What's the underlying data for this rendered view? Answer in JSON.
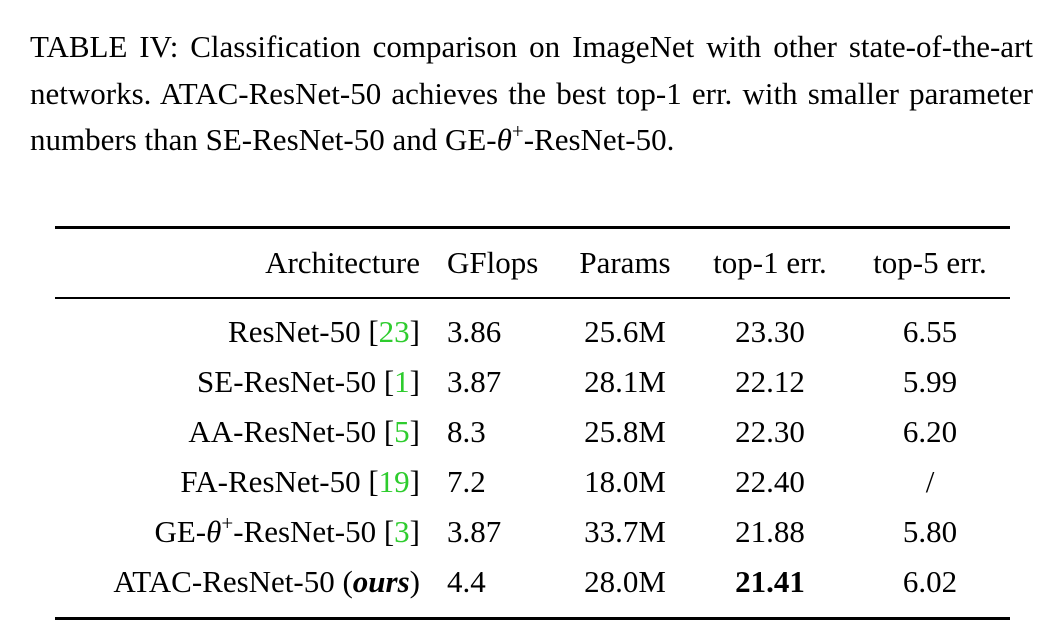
{
  "caption": [
    {
      "text": "TABLE IV: Classification comparison on ImageNet with other state-of-the-art networks. ATAC-ResNet-50 achieves the best top-1 err. with smaller parameter numbers than SE-ResNet-50 and GE-"
    },
    {
      "text": "θ",
      "style": "italic"
    },
    {
      "text": "+",
      "style": "sup"
    },
    {
      "text": "-ResNet-50."
    }
  ],
  "table": {
    "header": [
      "Architecture",
      "GFlops",
      "Params",
      "top-1 err.",
      "top-5 err."
    ],
    "rows": [
      [
        [
          {
            "text": "ResNet-50 ["
          },
          {
            "text": "23",
            "style": "cite"
          },
          {
            "text": "]"
          }
        ],
        [
          {
            "text": "3.86"
          }
        ],
        [
          {
            "text": "25.6M"
          }
        ],
        [
          {
            "text": "23.30"
          }
        ],
        [
          {
            "text": "6.55"
          }
        ]
      ],
      [
        [
          {
            "text": "SE-ResNet-50 ["
          },
          {
            "text": "1",
            "style": "cite"
          },
          {
            "text": "]"
          }
        ],
        [
          {
            "text": "3.87"
          }
        ],
        [
          {
            "text": "28.1M"
          }
        ],
        [
          {
            "text": "22.12"
          }
        ],
        [
          {
            "text": "5.99"
          }
        ]
      ],
      [
        [
          {
            "text": "AA-ResNet-50 ["
          },
          {
            "text": "5",
            "style": "cite"
          },
          {
            "text": "]"
          }
        ],
        [
          {
            "text": "8.3"
          }
        ],
        [
          {
            "text": "25.8M"
          }
        ],
        [
          {
            "text": "22.30"
          }
        ],
        [
          {
            "text": "6.20"
          }
        ]
      ],
      [
        [
          {
            "text": "FA-ResNet-50 ["
          },
          {
            "text": "19",
            "style": "cite"
          },
          {
            "text": "]"
          }
        ],
        [
          {
            "text": "7.2"
          }
        ],
        [
          {
            "text": "18.0M"
          }
        ],
        [
          {
            "text": "22.40"
          }
        ],
        [
          {
            "text": "/"
          }
        ]
      ],
      [
        [
          {
            "text": "GE-"
          },
          {
            "text": "θ",
            "style": "italic"
          },
          {
            "text": "+",
            "style": "sup"
          },
          {
            "text": "-ResNet-50 ["
          },
          {
            "text": "3",
            "style": "cite"
          },
          {
            "text": "]"
          }
        ],
        [
          {
            "text": "3.87"
          }
        ],
        [
          {
            "text": "33.7M"
          }
        ],
        [
          {
            "text": "21.88"
          }
        ],
        [
          {
            "text": "5.80"
          }
        ]
      ],
      [
        [
          {
            "text": "ATAC-ResNet-50 ("
          },
          {
            "text": "ours",
            "style": "bold-italic"
          },
          {
            "text": ")"
          }
        ],
        [
          {
            "text": "4.4"
          }
        ],
        [
          {
            "text": "28.0M"
          }
        ],
        [
          {
            "text": "21.41",
            "style": "bold"
          }
        ],
        [
          {
            "text": "6.02"
          }
        ]
      ]
    ]
  }
}
